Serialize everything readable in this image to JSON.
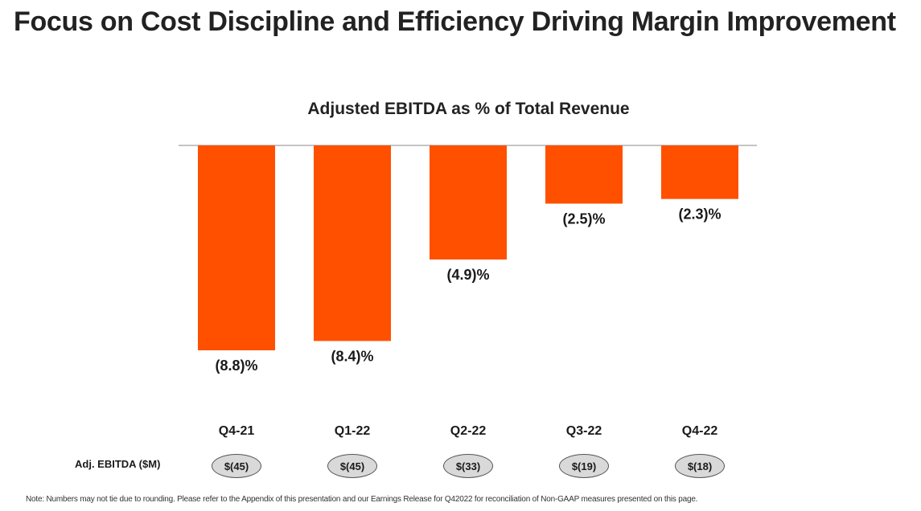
{
  "page": {
    "title": "Focus on Cost Discipline and Efficiency Driving Margin Improvement",
    "note": "Note: Numbers may not tie due to rounding. Please refer to the Appendix of this presentation and our Earnings Release for Q42022 for reconciliation of Non-GAAP measures presented on this page."
  },
  "colors": {
    "bar": "#ff5000",
    "baseline": "#888888",
    "pill_fill": "#d9d9d9",
    "pill_border": "#555555"
  },
  "chart_data": {
    "type": "bar",
    "title": "Adjusted EBITDA as % of Total Revenue",
    "categories": [
      "Q4-21",
      "Q1-22",
      "Q2-22",
      "Q3-22",
      "Q4-22"
    ],
    "values": [
      -8.8,
      -8.4,
      -4.9,
      -2.5,
      -2.3
    ],
    "data_labels": [
      "(8.8)%",
      "(8.4)%",
      "(4.9)%",
      "(2.5)%",
      "(2.3)%"
    ],
    "unit": "%",
    "xlabel": "",
    "ylabel": "",
    "ylim": [
      -8.8,
      0
    ],
    "grid": false,
    "legend": "none"
  },
  "ebitda_row": {
    "label": "Adj. EBITDA ($M)",
    "values": [
      "$(45)",
      "$(45)",
      "$(33)",
      "$(19)",
      "$(18)"
    ]
  }
}
